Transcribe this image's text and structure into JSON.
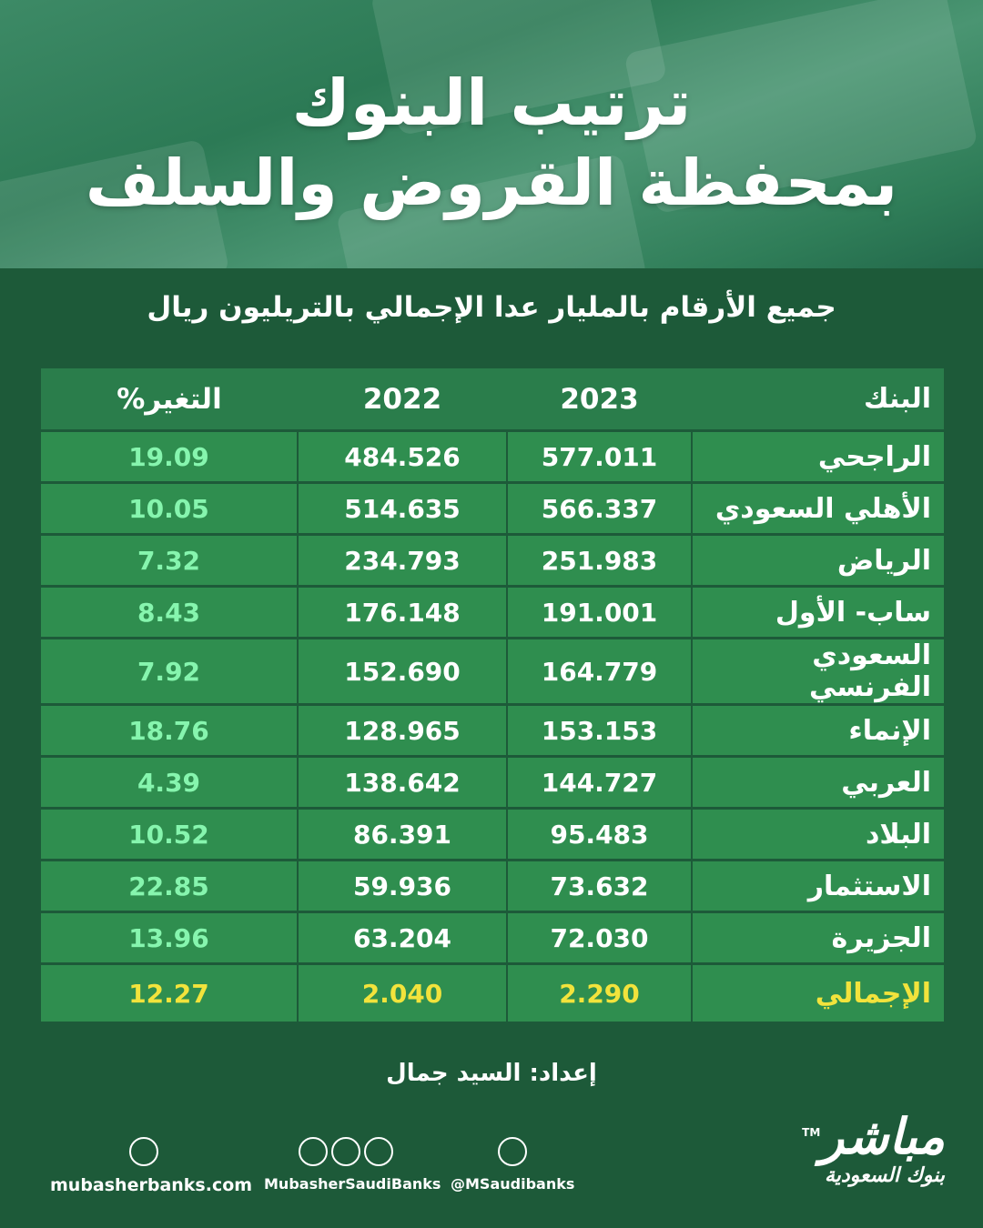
{
  "header": {
    "title_line1": "ترتيب البنوك",
    "title_line2": "بمحفظة القروض والسلف",
    "subtitle": "جميع الأرقام بالمليار عدا الإجمالي بالتريليون ريال"
  },
  "table": {
    "header": [
      "البنك",
      "2023",
      "2022",
      "التغير%"
    ],
    "rows": [
      [
        "الراجحي",
        "577.011",
        "484.526",
        "19.09"
      ],
      [
        "الأهلي السعودي",
        "566.337",
        "514.635",
        "10.05"
      ],
      [
        "الرياض",
        "251.983",
        "234.793",
        "7.32"
      ],
      [
        "ساب- الأول",
        "191.001",
        "176.148",
        "8.43"
      ],
      [
        "السعودي الفرنسي",
        "164.779",
        "152.690",
        "7.92"
      ],
      [
        "الإنماء",
        "153.153",
        "128.965",
        "18.76"
      ],
      [
        "العربي",
        "144.727",
        "138.642",
        "4.39"
      ],
      [
        "البلاد",
        "95.483",
        "86.391",
        "10.52"
      ],
      [
        "الاستثمار",
        "73.632",
        "59.936",
        "22.85"
      ],
      [
        "الجزيرة",
        "72.030",
        "63.204",
        "13.96"
      ]
    ],
    "total": [
      "الإجمالي",
      "2.290",
      "2.040",
      "12.27"
    ]
  },
  "footer": {
    "credit": "إعداد: السيد جمال",
    "website": "mubasherbanks.com",
    "social_handle": "MubasherSaudiBanks",
    "twitter_handle": "@MSaudibanks",
    "logo_text": "مباشر",
    "logo_subtext": "بنوك السعودية",
    "trademark": "TM"
  }
}
